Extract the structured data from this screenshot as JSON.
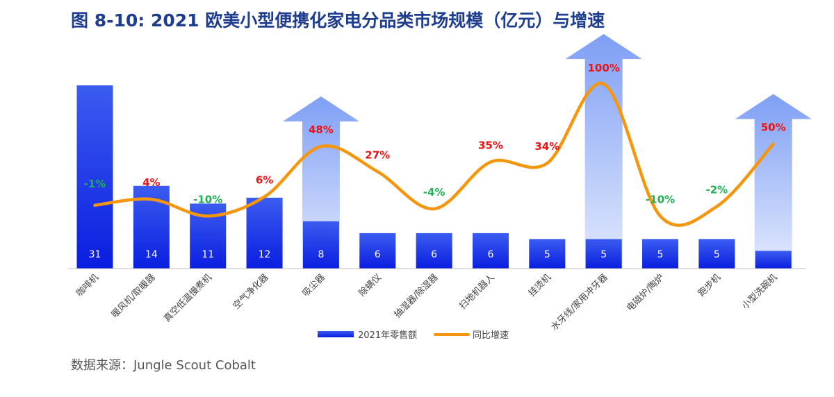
{
  "title": "图 8-10: 2021 欧美小型便携化家电分品类市场规模（亿元）与增速",
  "source": "数据来源：Jungle Scout Cobalt",
  "colors": {
    "bar_top": "#3b5cf0",
    "bar_bottom": "#0a1ee0",
    "line": "#f5960f",
    "positive_label": "#ee1111",
    "negative_label": "#20b050",
    "bar_value_text": "#ffffff",
    "arrow_top": "#7f9ff5",
    "arrow_bottom": "#e3eafd",
    "axis": "#bfbfbf",
    "category_text": "#444444"
  },
  "chart_data": {
    "type": "bar",
    "categories": [
      "咖啡机",
      "暖风机/取暖器",
      "真空低温慢煮机",
      "空气净化器",
      "吸尘器",
      "除螨仪",
      "抽湿器/除湿器",
      "扫地机器人",
      "挂烫机",
      "水牙线/家用冲牙器",
      "电磁炉/陶炉",
      "跑步机",
      "小型洗碗机"
    ],
    "series": [
      {
        "name": "2021年零售额",
        "type": "bar",
        "values": [
          31,
          14,
          11,
          12,
          8,
          6,
          6,
          6,
          5,
          5,
          5,
          5,
          3
        ]
      },
      {
        "name": "同比增速",
        "type": "line",
        "unit": "%",
        "values": [
          -1,
          4,
          -10,
          6,
          48,
          27,
          -4,
          35,
          34,
          100,
          -10,
          -2,
          50
        ]
      }
    ],
    "bar_labels": [
      "31",
      "14",
      "11",
      "12",
      "8",
      "6",
      "6",
      "6",
      "5",
      "5",
      "5",
      "5",
      ""
    ],
    "growth_labels": [
      "-1%",
      "4%",
      "-10%",
      "6%",
      "48%",
      "27%",
      "-4%",
      "35%",
      "34%",
      "100%",
      "-10%",
      "-2%",
      "50%"
    ],
    "highlight_categories": [
      "吸尘器",
      "水牙线/家用冲牙器",
      "小型洗碗机"
    ],
    "legend": [
      "2021年零售额",
      "同比增速"
    ],
    "legend_position": "bottom",
    "grid": false
  }
}
